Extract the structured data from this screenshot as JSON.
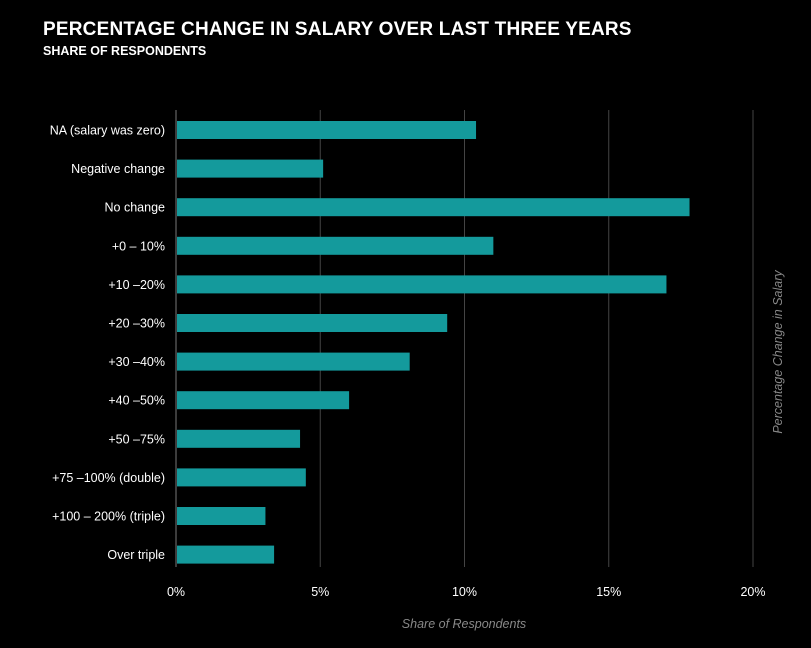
{
  "header": {
    "title": "PERCENTAGE CHANGE IN SALARY OVER LAST THREE YEARS",
    "subtitle": "SHARE OF RESPONDENTS"
  },
  "colors": {
    "background": "#000000",
    "bar": "#149a9c",
    "grid": "#444444",
    "axis_title": "#888888"
  },
  "chart_data": {
    "type": "bar",
    "orientation": "horizontal",
    "title": "PERCENTAGE CHANGE IN SALARY OVER LAST THREE YEARS",
    "subtitle": "SHARE OF RESPONDENTS",
    "xlabel": "Share of Respondents",
    "ylabel": "Percentage Change in Salary",
    "xlim": [
      0,
      20
    ],
    "xticks": [
      "0%",
      "5%",
      "10%",
      "15%",
      "20%"
    ],
    "grid": true,
    "categories": [
      "NA (salary was zero)",
      "Negative change",
      "No change",
      "+0 – 10%",
      "+10 –20%",
      "+20 –30%",
      "+30 –40%",
      "+40 –50%",
      "+50 –75%",
      "+75 –100% (double)",
      "+100 – 200% (triple)",
      "Over triple"
    ],
    "values": [
      10.4,
      5.1,
      17.8,
      11.0,
      17.0,
      9.4,
      8.1,
      6.0,
      4.3,
      4.5,
      3.1,
      3.4
    ]
  }
}
